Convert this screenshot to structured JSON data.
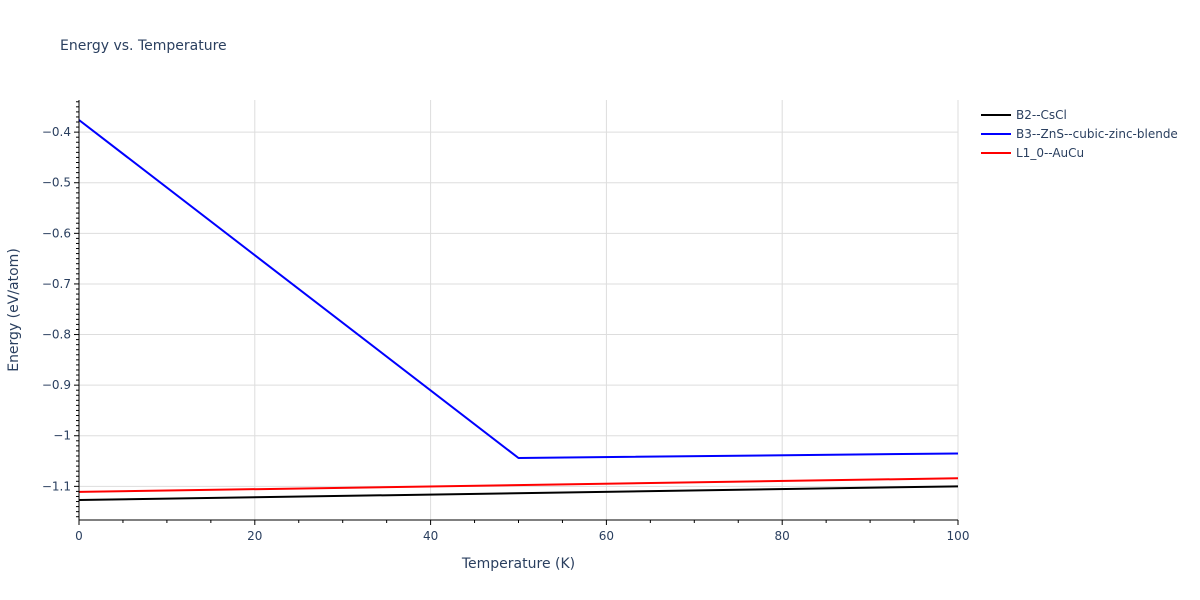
{
  "chart_data": {
    "type": "line",
    "title": "Energy vs. Temperature",
    "xlabel": "Temperature (K)",
    "ylabel": "Energy (eV/atom)",
    "xlim": [
      0,
      100
    ],
    "ylim": [
      -1.1665,
      -0.3365
    ],
    "x_ticks": [
      0,
      20,
      40,
      60,
      80,
      100
    ],
    "x_tick_labels": [
      "0",
      "20",
      "40",
      "60",
      "80",
      "100"
    ],
    "y_ticks": [
      -1.1,
      -1.0,
      -0.9,
      -0.8,
      -0.7,
      -0.6,
      -0.5,
      -0.4
    ],
    "y_tick_labels": [
      "−1.1",
      "−1",
      "−0.9",
      "−0.8",
      "−0.7",
      "−0.6",
      "−0.5",
      "−0.4"
    ],
    "grid": true,
    "legend_position": "top-right-outside",
    "series": [
      {
        "name": "B2--CsCl",
        "color": "#000000",
        "x": [
          0,
          100
        ],
        "y": [
          -1.127,
          -1.1
        ]
      },
      {
        "name": "B3--ZnS--cubic-zinc-blende",
        "color": "#0000ff",
        "x": [
          0,
          50,
          100
        ],
        "y": [
          -0.376,
          -1.044,
          -1.035
        ]
      },
      {
        "name": "L1_0--AuCu",
        "color": "#ff0000",
        "x": [
          0,
          100
        ],
        "y": [
          -1.111,
          -1.084
        ]
      }
    ]
  }
}
